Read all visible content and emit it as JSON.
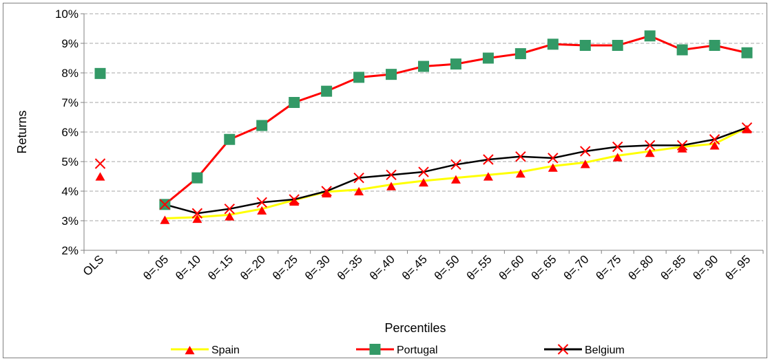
{
  "chart_data": {
    "type": "line",
    "xlabel": "Percentiles",
    "ylabel": "Returns",
    "ylim": [
      2,
      10
    ],
    "yticks": [
      "2%",
      "3%",
      "4%",
      "5%",
      "6%",
      "7%",
      "8%",
      "9%",
      "10%"
    ],
    "categories": [
      "OLS",
      "",
      "θ=.05",
      "θ=.10",
      "θ=.15",
      "θ=.20",
      "θ=.25",
      "θ=.30",
      "θ=.35",
      "θ=.40",
      "θ=.45",
      "θ=.50",
      "θ=.55",
      "θ=.60",
      "θ=.65",
      "θ=.70",
      "θ=.75",
      "θ=.80",
      "θ=.85",
      "θ=.90",
      "θ=.95"
    ],
    "grid": true,
    "legend_position": "bottom",
    "series": [
      {
        "name": "Spain",
        "line_color": "#ffff00",
        "marker": "triangle",
        "marker_color": "#ff0000",
        "values": [
          4.55,
          null,
          3.08,
          3.12,
          3.2,
          3.4,
          3.7,
          3.98,
          4.05,
          4.22,
          4.35,
          4.45,
          4.55,
          4.65,
          4.85,
          4.97,
          5.2,
          5.35,
          5.5,
          5.6,
          6.15
        ]
      },
      {
        "name": "Portugal",
        "line_color": "#ff0000",
        "marker": "square",
        "marker_color": "#339966",
        "values": [
          7.98,
          null,
          3.55,
          4.45,
          5.75,
          6.22,
          7.0,
          7.38,
          7.85,
          7.95,
          8.22,
          8.3,
          8.5,
          8.65,
          8.97,
          8.93,
          8.93,
          9.25,
          8.78,
          8.93,
          8.68
        ]
      },
      {
        "name": "Belgium",
        "line_color": "#000000",
        "marker": "x",
        "marker_color": "#ff0000",
        "values": [
          4.93,
          null,
          3.55,
          3.25,
          3.4,
          3.62,
          3.72,
          4.0,
          4.45,
          4.55,
          4.65,
          4.9,
          5.07,
          5.17,
          5.12,
          5.35,
          5.5,
          5.55,
          5.55,
          5.75,
          6.15
        ]
      }
    ]
  }
}
